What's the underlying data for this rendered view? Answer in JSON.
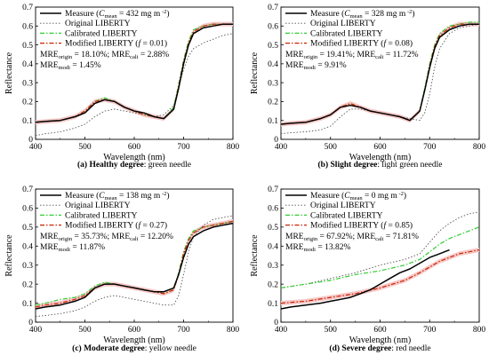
{
  "chart_data": [
    {
      "type": "line",
      "panel_label": "(a)",
      "caption_bold": "Healthy degree",
      "caption_rest": ": green needle",
      "xlabel": "Wavelength (nm)",
      "ylabel": "Reflectance",
      "xlim": [
        400,
        800
      ],
      "ylim": [
        0,
        0.7
      ],
      "xticks": [
        "400",
        "500",
        "600",
        "700",
        "800"
      ],
      "yticks": [
        "0",
        "0.1",
        "0.2",
        "0.3",
        "0.4",
        "0.5",
        "0.6",
        "0.7"
      ],
      "legend": {
        "measure": {
          "name": "Measure",
          "cmean_value": "432",
          "cmean_unit": "mg m",
          "cmean_exp": "-2"
        },
        "original": "Original LIBERTY",
        "calibrated": "Calibrated LIBERTY",
        "modified": "Modified LIBERTY",
        "f_value": "0.01",
        "mre_origin": "18.10%",
        "mre_cali": "2.88%",
        "mre_modi": "1.45%"
      },
      "series": [
        {
          "key": "measure",
          "x": [
            400,
            420,
            450,
            480,
            500,
            520,
            540,
            560,
            580,
            600,
            620,
            640,
            660,
            680,
            690,
            700,
            710,
            720,
            740,
            760,
            780,
            800
          ],
          "y": [
            0.09,
            0.095,
            0.1,
            0.12,
            0.14,
            0.19,
            0.21,
            0.2,
            0.17,
            0.15,
            0.14,
            0.12,
            0.11,
            0.16,
            0.27,
            0.4,
            0.5,
            0.56,
            0.59,
            0.6,
            0.61,
            0.61
          ]
        },
        {
          "key": "original",
          "x": [
            400,
            420,
            450,
            480,
            500,
            520,
            540,
            560,
            580,
            600,
            620,
            640,
            660,
            680,
            690,
            700,
            710,
            720,
            740,
            760,
            780,
            800
          ],
          "y": [
            0.02,
            0.03,
            0.04,
            0.06,
            0.08,
            0.12,
            0.15,
            0.16,
            0.15,
            0.14,
            0.13,
            0.12,
            0.13,
            0.18,
            0.28,
            0.37,
            0.44,
            0.48,
            0.51,
            0.53,
            0.55,
            0.56
          ]
        },
        {
          "key": "calibrated",
          "x": [
            400,
            420,
            450,
            480,
            500,
            520,
            540,
            560,
            580,
            600,
            620,
            640,
            660,
            680,
            690,
            700,
            710,
            720,
            740,
            760,
            780,
            800
          ],
          "y": [
            0.09,
            0.095,
            0.1,
            0.12,
            0.15,
            0.2,
            0.22,
            0.2,
            0.17,
            0.15,
            0.13,
            0.12,
            0.11,
            0.17,
            0.29,
            0.42,
            0.52,
            0.58,
            0.6,
            0.61,
            0.61,
            0.61
          ]
        },
        {
          "key": "modified",
          "x": [
            400,
            420,
            450,
            480,
            500,
            520,
            540,
            560,
            580,
            600,
            620,
            640,
            660,
            680,
            690,
            700,
            710,
            720,
            740,
            760,
            780,
            800
          ],
          "y": [
            0.09,
            0.095,
            0.1,
            0.12,
            0.15,
            0.2,
            0.21,
            0.2,
            0.17,
            0.15,
            0.13,
            0.12,
            0.11,
            0.16,
            0.28,
            0.41,
            0.51,
            0.57,
            0.6,
            0.61,
            0.61,
            0.61
          ]
        }
      ]
    },
    {
      "type": "line",
      "panel_label": "(b)",
      "caption_bold": "Slight degree",
      "caption_rest": ": light green needle",
      "xlabel": "Wavelength (nm)",
      "ylabel": "Reflectance",
      "xlim": [
        400,
        800
      ],
      "ylim": [
        0,
        0.7
      ],
      "xticks": [
        "400",
        "500",
        "600",
        "700",
        "800"
      ],
      "yticks": [
        "0",
        "0.1",
        "0.2",
        "0.3",
        "0.4",
        "0.5",
        "0.6",
        "0.7"
      ],
      "legend": {
        "measure": {
          "name": "Measure",
          "cmean_value": "328",
          "cmean_unit": "mg m",
          "cmean_exp": "-2"
        },
        "original": "Original LIBERTY",
        "calibrated": "Calibrated LIBERTY",
        "modified": "Modified LIBERTY",
        "f_value": "0.08",
        "mre_origin": "19.41%",
        "mre_cali": "11.72%",
        "mre_modi": "9.91%"
      },
      "series": [
        {
          "key": "measure",
          "x": [
            400,
            420,
            450,
            480,
            500,
            520,
            540,
            560,
            580,
            600,
            620,
            640,
            660,
            680,
            690,
            700,
            710,
            720,
            740,
            760,
            780,
            800
          ],
          "y": [
            0.08,
            0.085,
            0.09,
            0.11,
            0.13,
            0.17,
            0.18,
            0.17,
            0.15,
            0.14,
            0.13,
            0.12,
            0.1,
            0.15,
            0.26,
            0.38,
            0.48,
            0.54,
            0.58,
            0.6,
            0.61,
            0.61
          ]
        },
        {
          "key": "original",
          "x": [
            400,
            420,
            450,
            480,
            500,
            520,
            540,
            560,
            580,
            600,
            620,
            640,
            660,
            680,
            690,
            700,
            710,
            720,
            740,
            760,
            780,
            800
          ],
          "y": [
            0.03,
            0.035,
            0.04,
            0.05,
            0.07,
            0.12,
            0.16,
            0.16,
            0.15,
            0.14,
            0.13,
            0.12,
            0.11,
            0.1,
            0.14,
            0.24,
            0.38,
            0.48,
            0.56,
            0.59,
            0.6,
            0.61
          ]
        },
        {
          "key": "calibrated",
          "x": [
            400,
            420,
            450,
            480,
            500,
            520,
            540,
            560,
            580,
            600,
            620,
            640,
            660,
            680,
            690,
            700,
            710,
            720,
            740,
            760,
            780,
            800
          ],
          "y": [
            0.08,
            0.085,
            0.09,
            0.11,
            0.13,
            0.17,
            0.19,
            0.17,
            0.15,
            0.14,
            0.13,
            0.12,
            0.1,
            0.15,
            0.27,
            0.4,
            0.5,
            0.56,
            0.6,
            0.61,
            0.62,
            0.62
          ]
        },
        {
          "key": "modified",
          "x": [
            400,
            420,
            450,
            480,
            500,
            520,
            540,
            560,
            580,
            600,
            620,
            640,
            660,
            680,
            690,
            700,
            710,
            720,
            740,
            760,
            780,
            800
          ],
          "y": [
            0.08,
            0.085,
            0.09,
            0.11,
            0.13,
            0.17,
            0.19,
            0.17,
            0.15,
            0.14,
            0.13,
            0.12,
            0.1,
            0.15,
            0.26,
            0.39,
            0.49,
            0.55,
            0.59,
            0.61,
            0.61,
            0.61
          ]
        }
      ]
    },
    {
      "type": "line",
      "panel_label": "(c)",
      "caption_bold": "Moderate degree",
      "caption_rest": ": yellow needle",
      "xlabel": "Wavelength (nm)",
      "ylabel": "Reflectance",
      "xlim": [
        400,
        800
      ],
      "ylim": [
        0,
        0.7
      ],
      "xticks": [
        "400",
        "500",
        "600",
        "700",
        "800"
      ],
      "yticks": [
        "0",
        "0.1",
        "0.2",
        "0.3",
        "0.4",
        "0.5",
        "0.6",
        "0.7"
      ],
      "legend": {
        "measure": {
          "name": "Measure",
          "cmean_value": "138",
          "cmean_unit": "mg m",
          "cmean_exp": "-2"
        },
        "original": "Original LIBERTY",
        "calibrated": "Calibrated LIBERTY",
        "modified": "Modified LIBERTY",
        "f_value": "0.27",
        "mre_origin": "35.73%",
        "mre_cali": "12.20%",
        "mre_modi": "11.87%"
      },
      "series": [
        {
          "key": "measure",
          "x": [
            400,
            420,
            450,
            480,
            500,
            520,
            540,
            560,
            580,
            600,
            620,
            640,
            660,
            680,
            690,
            700,
            710,
            720,
            740,
            760,
            780,
            800
          ],
          "y": [
            0.07,
            0.08,
            0.09,
            0.11,
            0.13,
            0.18,
            0.2,
            0.2,
            0.19,
            0.18,
            0.17,
            0.16,
            0.16,
            0.18,
            0.25,
            0.34,
            0.41,
            0.45,
            0.48,
            0.5,
            0.51,
            0.52
          ]
        },
        {
          "key": "original",
          "x": [
            400,
            420,
            450,
            480,
            500,
            520,
            540,
            560,
            580,
            600,
            620,
            640,
            660,
            680,
            690,
            700,
            710,
            720,
            740,
            760,
            780,
            800
          ],
          "y": [
            0.03,
            0.035,
            0.045,
            0.06,
            0.08,
            0.11,
            0.13,
            0.14,
            0.13,
            0.12,
            0.11,
            0.1,
            0.09,
            0.09,
            0.14,
            0.25,
            0.37,
            0.45,
            0.51,
            0.54,
            0.55,
            0.56
          ]
        },
        {
          "key": "calibrated",
          "x": [
            400,
            420,
            450,
            480,
            500,
            520,
            540,
            560,
            580,
            600,
            620,
            640,
            660,
            680,
            690,
            700,
            710,
            720,
            740,
            760,
            780,
            800
          ],
          "y": [
            0.09,
            0.1,
            0.12,
            0.13,
            0.15,
            0.19,
            0.21,
            0.2,
            0.19,
            0.18,
            0.17,
            0.16,
            0.15,
            0.17,
            0.26,
            0.37,
            0.44,
            0.48,
            0.5,
            0.51,
            0.52,
            0.53
          ]
        },
        {
          "key": "modified",
          "x": [
            400,
            420,
            450,
            480,
            500,
            520,
            540,
            560,
            580,
            600,
            620,
            640,
            660,
            680,
            690,
            700,
            710,
            720,
            740,
            760,
            780,
            800
          ],
          "y": [
            0.08,
            0.09,
            0.1,
            0.12,
            0.14,
            0.18,
            0.2,
            0.2,
            0.19,
            0.18,
            0.17,
            0.16,
            0.15,
            0.17,
            0.25,
            0.36,
            0.43,
            0.47,
            0.5,
            0.51,
            0.52,
            0.53
          ]
        }
      ]
    },
    {
      "type": "line",
      "panel_label": "(d)",
      "caption_bold": "Severe degree",
      "caption_rest": ": red needle",
      "xlabel": "Wavelength (nm)",
      "ylabel": "Reflectance",
      "xlim": [
        400,
        800
      ],
      "ylim": [
        0,
        0.7
      ],
      "xticks": [
        "400",
        "500",
        "600",
        "700",
        "800"
      ],
      "yticks": [
        "0",
        "0.1",
        "0.2",
        "0.3",
        "0.4",
        "0.5",
        "0.6",
        "0.7"
      ],
      "legend": {
        "measure": {
          "name": "Measure",
          "cmean_value": "0",
          "cmean_unit": "mg m",
          "cmean_exp": "-2"
        },
        "original": "Original LIBERTY",
        "calibrated": "Calibrated LIBERTY",
        "modified": "Modified LIBERTY",
        "f_value": "0.85",
        "mre_origin": "67.92%",
        "mre_cali": "71.81%",
        "mre_modi": "13.82%"
      },
      "series": [
        {
          "key": "measure",
          "x": [
            400,
            420,
            450,
            480,
            500,
            520,
            540,
            560,
            580,
            600,
            620,
            640,
            660,
            680,
            700,
            720,
            740
          ],
          "y": [
            0.07,
            0.08,
            0.09,
            0.1,
            0.11,
            0.12,
            0.13,
            0.15,
            0.17,
            0.2,
            0.23,
            0.26,
            0.28,
            0.31,
            0.34,
            0.36,
            0.38
          ]
        },
        {
          "key": "original",
          "x": [
            400,
            450,
            500,
            550,
            600,
            650,
            680,
            700,
            720,
            740,
            760,
            780,
            800
          ],
          "y": [
            0.18,
            0.2,
            0.23,
            0.26,
            0.3,
            0.33,
            0.36,
            0.42,
            0.48,
            0.52,
            0.55,
            0.57,
            0.58
          ]
        },
        {
          "key": "calibrated",
          "x": [
            400,
            450,
            500,
            550,
            600,
            650,
            680,
            700,
            720,
            740,
            760,
            780,
            800
          ],
          "y": [
            0.18,
            0.2,
            0.22,
            0.25,
            0.27,
            0.3,
            0.33,
            0.37,
            0.41,
            0.44,
            0.46,
            0.48,
            0.5
          ]
        },
        {
          "key": "modified",
          "x": [
            400,
            450,
            500,
            550,
            600,
            650,
            680,
            700,
            720,
            740,
            760,
            780,
            800
          ],
          "y": [
            0.1,
            0.11,
            0.13,
            0.15,
            0.18,
            0.22,
            0.26,
            0.29,
            0.32,
            0.34,
            0.36,
            0.37,
            0.38
          ]
        }
      ]
    }
  ],
  "styles": {
    "measure": {
      "color": "#000000",
      "width": 1.5,
      "dash": ""
    },
    "original": {
      "color": "#555555",
      "width": 0.9,
      "dash": "1.5,2"
    },
    "calibrated": {
      "color": "#33cc33",
      "width": 1.2,
      "dash": "5,2,1.5,2"
    },
    "modified": {
      "color": "#cc2200",
      "width": 1.2,
      "dash": "5,2,1.5,2"
    },
    "uncertainty_band": "#f6c8c8"
  }
}
